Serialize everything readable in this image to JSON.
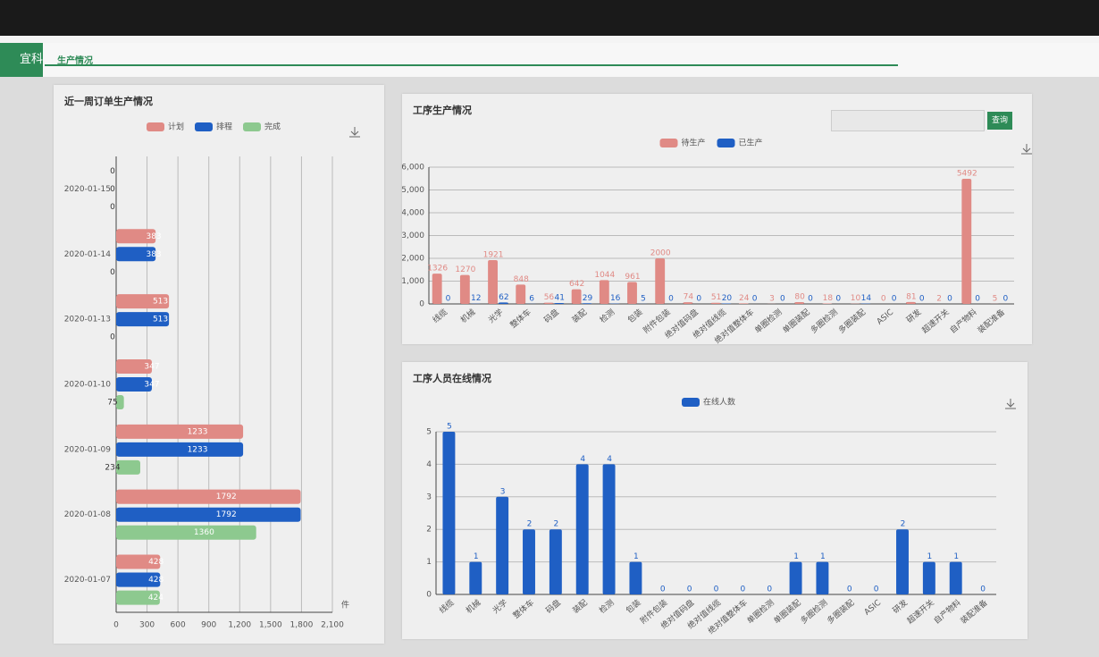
{
  "header": {
    "app": "宜科",
    "tab": "生产情况"
  },
  "search": {
    "button": "查询"
  },
  "chart_data": [
    {
      "type": "barh",
      "title": "近一周订单生产情况",
      "xlabel": "件",
      "categories": [
        "2020-01-15",
        "2020-01-14",
        "2020-01-13",
        "2020-01-10",
        "2020-01-09",
        "2020-01-08",
        "2020-01-07"
      ],
      "series": [
        {
          "name": "计划",
          "color": "#e08a85",
          "values": [
            0,
            383,
            513,
            347,
            1233,
            1792,
            428
          ]
        },
        {
          "name": "排程",
          "color": "#1f5fc4",
          "values": [
            0,
            383,
            513,
            347,
            1233,
            1792,
            428
          ]
        },
        {
          "name": "完成",
          "color": "#8dc98f",
          "values": [
            0,
            0,
            0,
            75,
            234,
            1360,
            424
          ]
        }
      ],
      "xlim": [
        0,
        2100
      ],
      "xticks": [
        0,
        300,
        600,
        900,
        {
          "value": 1200,
          "label": "1,200"
        },
        {
          "value": 1500,
          "label": "1,500"
        },
        {
          "value": 1800,
          "label": "1,800"
        },
        {
          "value": 2100,
          "label": "2,100"
        }
      ],
      "grid": true
    },
    {
      "type": "bar",
      "title": "工序生产情况",
      "categories": [
        "线缆",
        "机械",
        "光学",
        "整体车",
        "码盘",
        "装配",
        "检测",
        "包装",
        "附件包装",
        "绝对值码盘",
        "绝对值线缆",
        "绝对值整体车",
        "单圈检测",
        "单圈装配",
        "多圈检测",
        "多圈装配",
        "ASIC",
        "研发",
        "超速开关",
        "自产物料",
        "装配准备"
      ],
      "series": [
        {
          "name": "待生产",
          "color": "#e08a85",
          "values": [
            1326,
            1270,
            1921,
            848,
            56,
            642,
            1044,
            961,
            2000,
            74,
            51,
            24,
            3,
            80,
            18,
            10,
            0,
            81,
            2,
            5492,
            5
          ]
        },
        {
          "name": "已生产",
          "color": "#1f5fc4",
          "values": [
            0,
            12,
            62,
            6,
            41,
            29,
            16,
            5,
            0,
            0,
            20,
            0,
            0,
            0,
            0,
            14,
            0,
            0,
            0,
            0,
            0
          ]
        }
      ],
      "ylim": [
        0,
        6000
      ],
      "yticks": [
        0,
        {
          "value": 1000,
          "label": "1,000"
        },
        {
          "value": 2000,
          "label": "2,000"
        },
        {
          "value": 3000,
          "label": "3,000"
        },
        {
          "value": 4000,
          "label": "4,000"
        },
        {
          "value": 5000,
          "label": "5,000"
        },
        {
          "value": 6000,
          "label": "6,000"
        }
      ],
      "grid": true
    },
    {
      "type": "bar",
      "title": "工序人员在线情况",
      "categories": [
        "线缆",
        "机械",
        "光学",
        "整体车",
        "码盘",
        "装配",
        "检测",
        "包装",
        "附件包装",
        "绝对值码盘",
        "绝对值线缆",
        "绝对值整体车",
        "单圈检测",
        "单圈装配",
        "多圈检测",
        "多圈装配",
        "ASIC",
        "研发",
        "超速开关",
        "自产物料",
        "装配准备"
      ],
      "series": [
        {
          "name": "在线人数",
          "color": "#1f5fc4",
          "values": [
            5,
            1,
            3,
            2,
            2,
            4,
            4,
            1,
            0,
            0,
            0,
            0,
            0,
            1,
            1,
            0,
            0,
            2,
            1,
            1,
            0
          ]
        }
      ],
      "ylim": [
        0,
        5
      ],
      "yticks": [
        0,
        1,
        2,
        3,
        4,
        5
      ],
      "grid": true
    }
  ]
}
